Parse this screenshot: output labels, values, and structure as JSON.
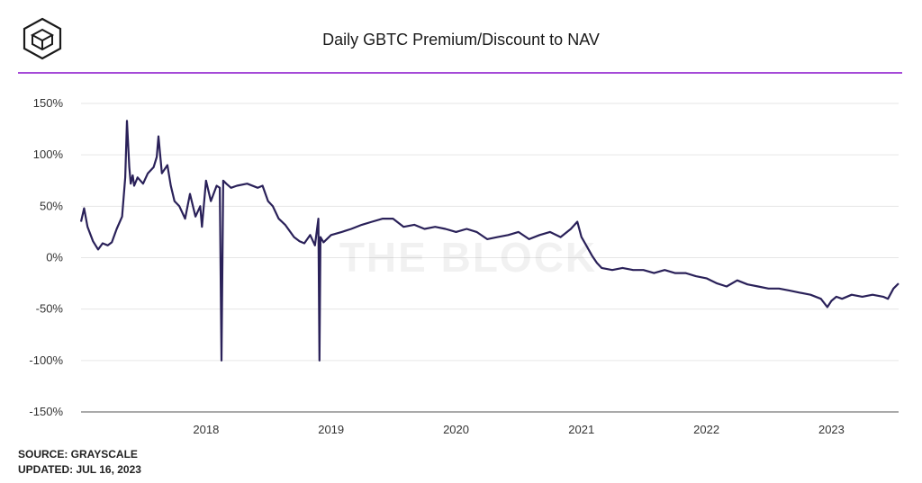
{
  "header": {
    "logo_icon": "the-block-cube-icon",
    "title": "Daily GBTC Premium/Discount to NAV",
    "accent_color": "#a54ad8"
  },
  "footer": {
    "source": "SOURCE: GRAYSCALE",
    "updated": "UPDATED: JUL 16, 2023"
  },
  "watermark": "THE BLOCK",
  "chart_data": {
    "type": "line",
    "title": "Daily GBTC Premium/Discount to NAV",
    "xlabel": "",
    "ylabel": "",
    "ylim": [
      -150,
      150
    ],
    "yticks": [
      150,
      100,
      50,
      0,
      -50,
      -100,
      -150
    ],
    "ytick_labels": [
      "150%",
      "100%",
      "50%",
      "0%",
      "-50%",
      "-100%",
      "-150%"
    ],
    "xlim": [
      "2017-01-01",
      "2023-07-16"
    ],
    "xticks": [
      "2018-01-01",
      "2019-01-01",
      "2020-01-01",
      "2021-01-01",
      "2022-01-01",
      "2023-01-01"
    ],
    "xtick_labels": [
      "2018",
      "2019",
      "2020",
      "2021",
      "2022",
      "2023"
    ],
    "grid": true,
    "legend": "none",
    "series": [
      {
        "color": "#2a2159",
        "x": [
          "2017-01-01",
          "2017-01-10",
          "2017-01-20",
          "2017-02-05",
          "2017-02-20",
          "2017-03-05",
          "2017-03-20",
          "2017-04-01",
          "2017-04-15",
          "2017-05-01",
          "2017-05-10",
          "2017-05-15",
          "2017-05-22",
          "2017-05-26",
          "2017-06-01",
          "2017-06-05",
          "2017-06-15",
          "2017-07-01",
          "2017-07-15",
          "2017-08-01",
          "2017-08-10",
          "2017-08-15",
          "2017-08-25",
          "2017-09-10",
          "2017-09-20",
          "2017-10-01",
          "2017-10-15",
          "2017-11-01",
          "2017-11-15",
          "2017-12-01",
          "2017-12-15",
          "2017-12-20",
          "2018-01-01",
          "2018-01-15",
          "2018-02-01",
          "2018-02-10",
          "2018-02-15",
          "2018-02-20",
          "2018-03-01",
          "2018-03-15",
          "2018-04-01",
          "2018-05-01",
          "2018-06-01",
          "2018-06-15",
          "2018-07-01",
          "2018-07-15",
          "2018-08-01",
          "2018-08-20",
          "2018-09-15",
          "2018-10-01",
          "2018-10-15",
          "2018-11-01",
          "2018-11-15",
          "2018-11-25",
          "2018-11-28",
          "2018-12-01",
          "2018-12-10",
          "2019-01-01",
          "2019-02-01",
          "2019-03-01",
          "2019-04-01",
          "2019-05-01",
          "2019-06-01",
          "2019-07-01",
          "2019-08-01",
          "2019-09-01",
          "2019-10-01",
          "2019-11-01",
          "2019-12-01",
          "2020-01-01",
          "2020-02-01",
          "2020-03-01",
          "2020-04-01",
          "2020-05-01",
          "2020-06-01",
          "2020-07-01",
          "2020-08-01",
          "2020-09-01",
          "2020-10-01",
          "2020-11-01",
          "2020-12-01",
          "2020-12-20",
          "2021-01-01",
          "2021-01-15",
          "2021-02-01",
          "2021-02-15",
          "2021-03-01",
          "2021-04-01",
          "2021-05-01",
          "2021-06-01",
          "2021-07-01",
          "2021-08-01",
          "2021-09-01",
          "2021-10-01",
          "2021-11-01",
          "2021-12-01",
          "2022-01-01",
          "2022-02-01",
          "2022-03-01",
          "2022-04-01",
          "2022-05-01",
          "2022-06-01",
          "2022-07-01",
          "2022-08-01",
          "2022-09-01",
          "2022-10-01",
          "2022-11-01",
          "2022-12-01",
          "2022-12-20",
          "2023-01-01",
          "2023-01-15",
          "2023-02-01",
          "2023-03-01",
          "2023-04-01",
          "2023-05-01",
          "2023-06-01",
          "2023-06-15",
          "2023-07-01",
          "2023-07-16"
        ],
        "y": [
          35,
          48,
          30,
          16,
          8,
          14,
          12,
          15,
          28,
          40,
          78,
          133,
          88,
          72,
          80,
          70,
          78,
          72,
          82,
          88,
          98,
          118,
          82,
          90,
          70,
          55,
          50,
          38,
          62,
          40,
          50,
          30,
          75,
          55,
          70,
          68,
          -100,
          75,
          72,
          68,
          70,
          72,
          68,
          70,
          55,
          50,
          38,
          32,
          20,
          16,
          14,
          22,
          12,
          38,
          -100,
          20,
          15,
          22,
          25,
          28,
          32,
          35,
          38,
          38,
          30,
          32,
          28,
          30,
          28,
          25,
          28,
          25,
          18,
          20,
          22,
          25,
          18,
          22,
          25,
          20,
          28,
          35,
          20,
          12,
          2,
          -5,
          -10,
          -12,
          -10,
          -12,
          -12,
          -15,
          -12,
          -15,
          -15,
          -18,
          -20,
          -25,
          -28,
          -22,
          -26,
          -28,
          -30,
          -30,
          -32,
          -34,
          -36,
          -40,
          -48,
          -42,
          -38,
          -40,
          -36,
          -38,
          -36,
          -38,
          -40,
          -30,
          -25
        ]
      }
    ]
  }
}
